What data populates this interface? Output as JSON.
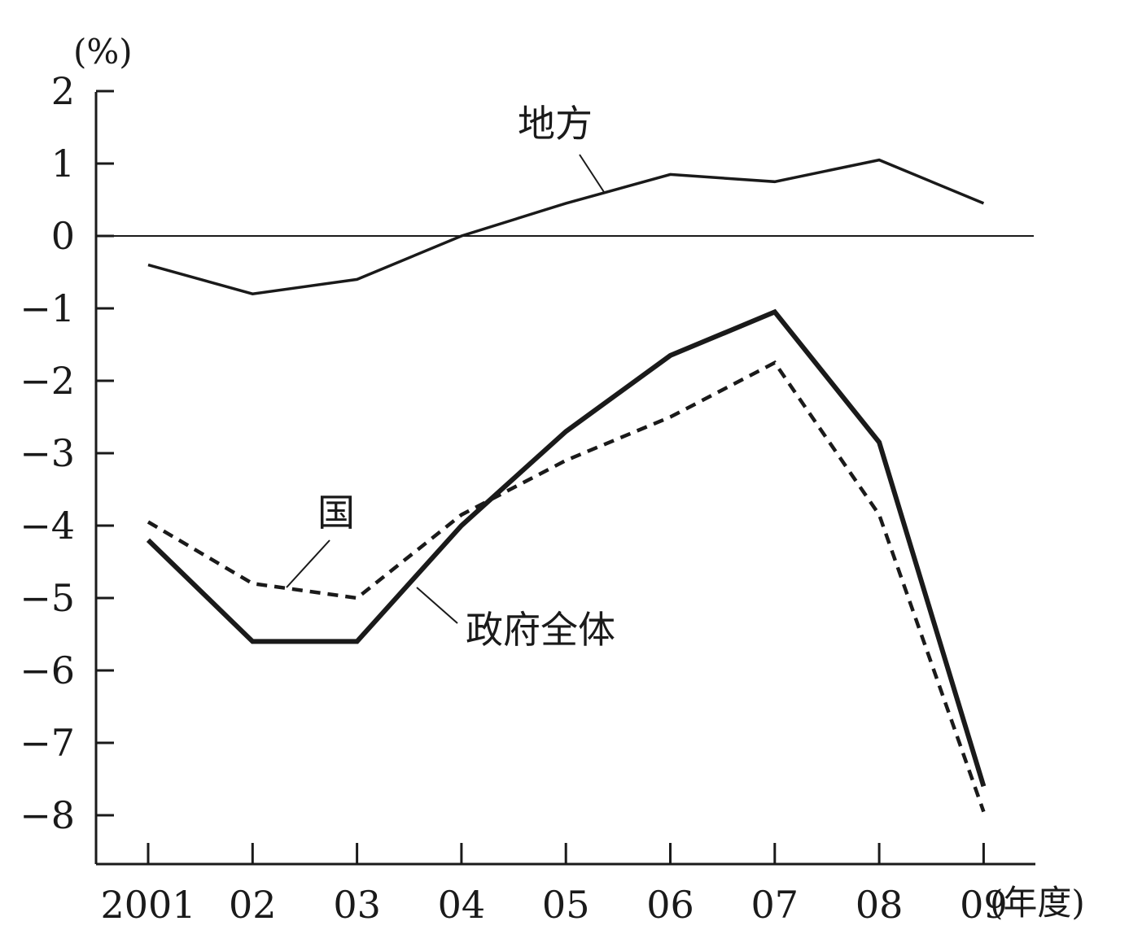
{
  "chart_data": {
    "type": "line",
    "ylabel": "(%)",
    "xlabel": "(年度)",
    "categories": [
      "2001",
      "02",
      "03",
      "04",
      "05",
      "06",
      "07",
      "08",
      "09"
    ],
    "ylim": [
      -8.7,
      2
    ],
    "yticks": [
      "2",
      "1",
      "0",
      "−1",
      "−2",
      "−3",
      "−4",
      "−5",
      "−6",
      "−7",
      "−8"
    ],
    "ytick_values": [
      2,
      1,
      0,
      -1,
      -2,
      -3,
      -4,
      -5,
      -6,
      -7,
      -8
    ],
    "zero_line": true,
    "grid": false,
    "series": [
      {
        "name": "地方",
        "style": "solid-thin",
        "values": [
          -0.4,
          -0.8,
          -0.6,
          0.0,
          0.45,
          0.85,
          0.75,
          1.05,
          0.45
        ]
      },
      {
        "name": "国",
        "style": "dashed",
        "values": [
          -3.95,
          -4.8,
          -5.0,
          -3.85,
          -3.1,
          -2.5,
          -1.75,
          -3.85,
          -7.95
        ]
      },
      {
        "name": "政府全体",
        "style": "solid-thick",
        "values": [
          -4.2,
          -5.6,
          -5.6,
          -4.0,
          -2.7,
          -1.65,
          -1.05,
          -2.85,
          -7.6
        ]
      }
    ],
    "colors": {
      "line": "#1a1a1a",
      "background": "#ffffff"
    }
  }
}
